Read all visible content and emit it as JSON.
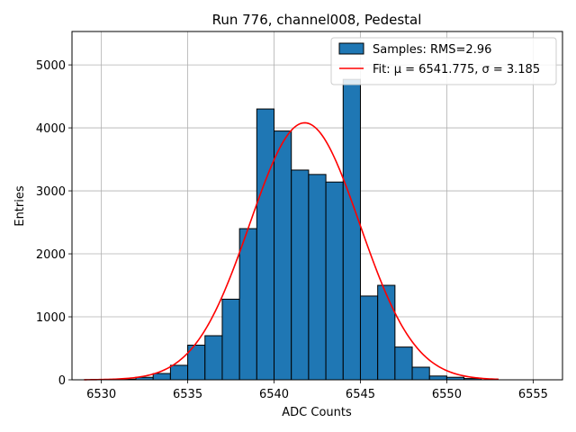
{
  "chart_data": {
    "type": "bar",
    "title": "Run 776, channel008, Pedestal",
    "xlabel": "ADC Counts",
    "ylabel": "Entries",
    "xlim": [
      6528.3,
      6556.7
    ],
    "ylim": [
      0,
      5530
    ],
    "xticks": [
      6530,
      6535,
      6540,
      6545,
      6550,
      6555
    ],
    "yticks": [
      0,
      1000,
      2000,
      3000,
      4000,
      5000
    ],
    "grid": true,
    "legend_position": "top-right",
    "histogram": {
      "name": "Samples: RMS=2.96",
      "color": "#1f77b4",
      "bin_width": 1,
      "bin_starts": [
        6530,
        6531,
        6532,
        6533,
        6534,
        6535,
        6536,
        6537,
        6538,
        6539,
        6540,
        6541,
        6542,
        6543,
        6544,
        6545,
        6546,
        6547,
        6548,
        6549,
        6550,
        6551
      ],
      "counts": [
        5,
        10,
        40,
        100,
        230,
        550,
        700,
        1280,
        2400,
        4300,
        3950,
        3330,
        3260,
        3140,
        4770,
        1330,
        1500,
        520,
        200,
        60,
        40,
        20
      ]
    },
    "fit": {
      "name": "Fit: μ = 6541.775, σ = 3.185",
      "color": "#ff0000",
      "mu": 6541.775,
      "sigma": 3.185,
      "amplitude": 4080,
      "x_range": [
        6529,
        6553
      ]
    }
  }
}
